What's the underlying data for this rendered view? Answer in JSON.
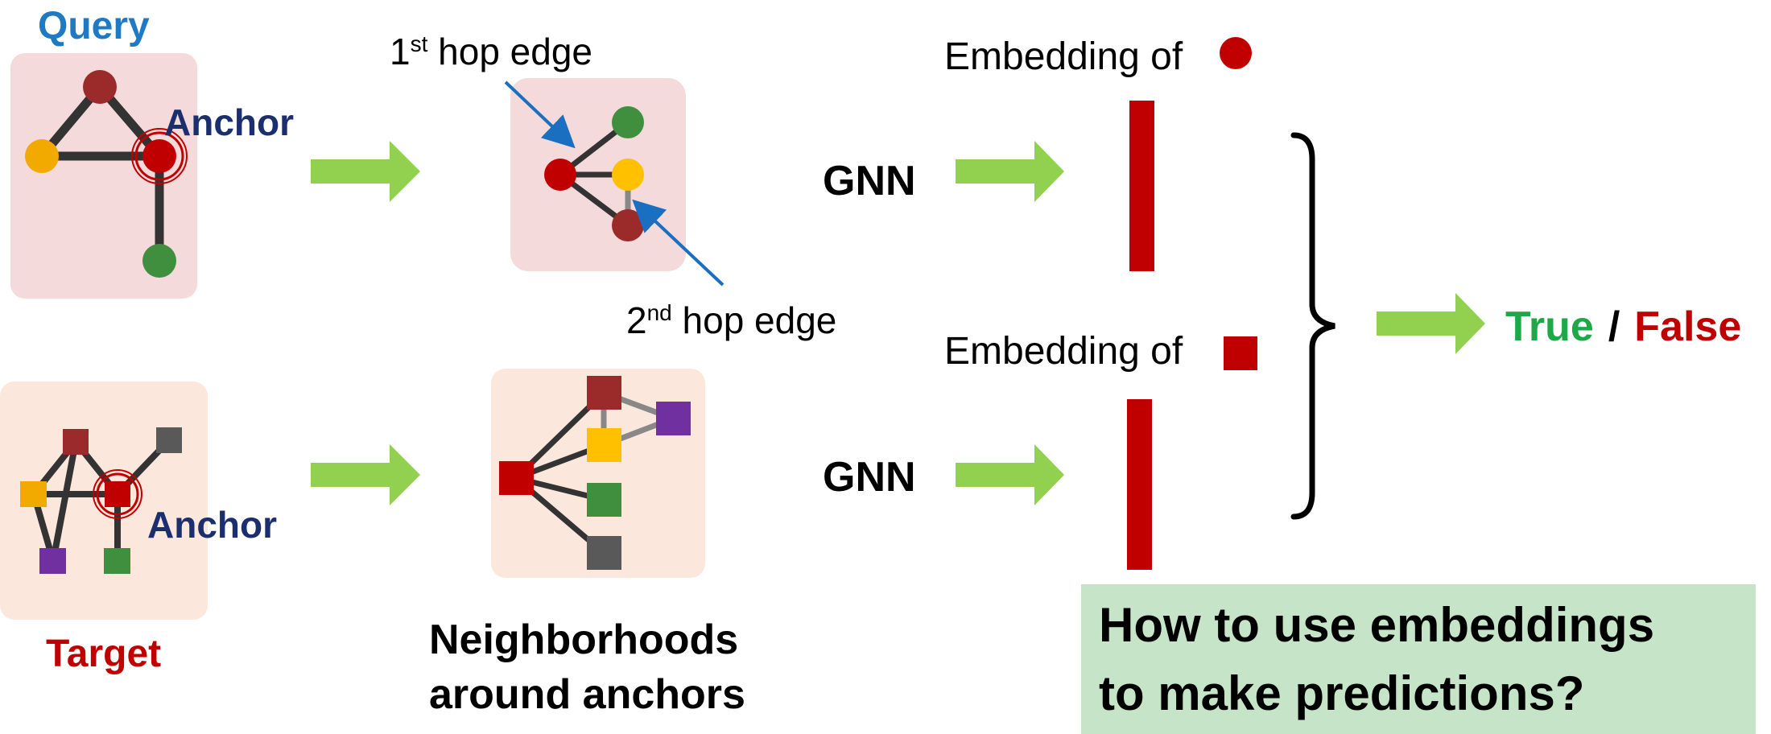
{
  "labels": {
    "query": "Query",
    "target": "Target",
    "anchor_query": "Anchor",
    "anchor_target": "Anchor",
    "hop1_num": "1",
    "hop1_sup": "st",
    "hop1_rest": " hop edge",
    "hop2_num": "2",
    "hop2_sup": "nd",
    "hop2_rest": " hop edge",
    "gnn_top": "GNN",
    "gnn_bottom": "GNN",
    "embedding_of_top": "Embedding of",
    "embedding_of_bottom": "Embedding of",
    "true": "True",
    "slash": "/",
    "false": "False",
    "neighborhoods_line1": "Neighborhoods",
    "neighborhoods_line2": "around anchors",
    "question_line1": "How to use embeddings",
    "question_line2": "to make predictions?"
  },
  "colors": {
    "query_text": "#1f7ac4",
    "anchor_text": "#1b2e6e",
    "target_text": "#c00000",
    "true_text": "#1fa848",
    "false_text": "#c00000",
    "arrow": "#92d050",
    "hop_arrow": "#1a6fc0",
    "embedding_bar": "#c00000",
    "query_panel": "#f4dada",
    "target_panel": "#fbe7dc",
    "question_box": "#c6e4c8",
    "edge": "#333333",
    "edge_light": "#888888",
    "node_darkred": "#9b2b2b",
    "node_red": "#c00000",
    "node_orange": "#f2a900",
    "node_yellow": "#ffc000",
    "node_green": "#3f8f3f",
    "node_purple": "#7030a0",
    "node_gray": "#595959"
  },
  "icons": {
    "circle_node": "circle-node-icon",
    "square_node": "square-node-icon",
    "flow_arrow": "right-arrow-icon",
    "brace": "right-curly-brace-icon"
  }
}
